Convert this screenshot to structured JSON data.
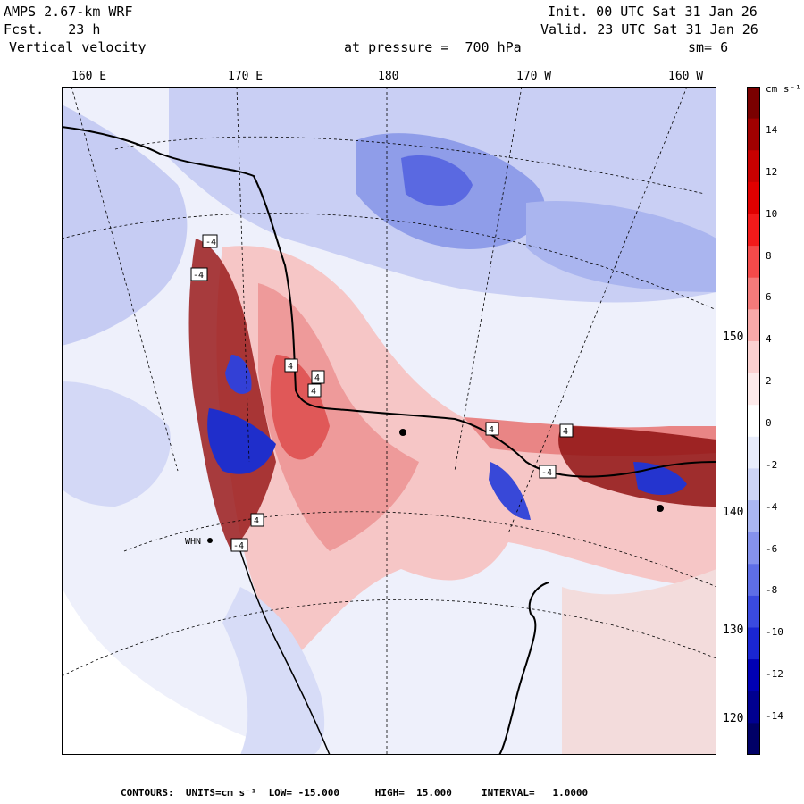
{
  "header": {
    "model": "AMPS 2.67-km WRF",
    "fcst": "Fcst.   23 h",
    "variable": "Vertical velocity",
    "init": "Init. 00 UTC Sat 31 Jan 26",
    "valid": "Valid. 23 UTC Sat 31 Jan 26",
    "pressure": "at pressure =  700 hPa",
    "smoothing": "sm= 6"
  },
  "longitude_labels": [
    "160 E",
    "170 E",
    "180",
    "170 W",
    "160 W"
  ],
  "latitude_labels": [
    "150 W",
    "140 W",
    "130 W",
    "120 W"
  ],
  "colorbar": {
    "units": "cm s⁻¹",
    "ticks": [
      "14",
      "12",
      "10",
      "8",
      "6",
      "4",
      "2",
      "0",
      "-2",
      "-4",
      "-6",
      "-8",
      "-10",
      "-12",
      "-14"
    ],
    "colors": [
      "#7a0000",
      "#a00000",
      "#c80000",
      "#e00000",
      "#f21a1a",
      "#f44a4a",
      "#f47a7a",
      "#f7a8a8",
      "#fbd0d0",
      "#fdeaea",
      "#ffffff",
      "#e8ecfb",
      "#cdd4f6",
      "#aab6f1",
      "#8592ec",
      "#5e6ee6",
      "#3a4adf",
      "#1a26d2",
      "#0000b4",
      "#000090",
      "#000066"
    ]
  },
  "station_labels": [
    "WHN"
  ],
  "contour_labels": [
    "4",
    "-4",
    "4",
    "4",
    "-4",
    "4",
    "4",
    "-4",
    "4",
    "-4"
  ],
  "footer": {
    "contours": "CONTOURS:  UNITS=cm s⁻¹  LOW= -15.000      HIGH=  15.000     INTERVAL=   1.0000"
  },
  "colors": {
    "ocean_rise": "#f4c4c4",
    "strong_rise": "#e87272",
    "sink": "#c3caf2",
    "strong_sink": "#5c6ce4",
    "neutral": "#e9ecfa"
  }
}
